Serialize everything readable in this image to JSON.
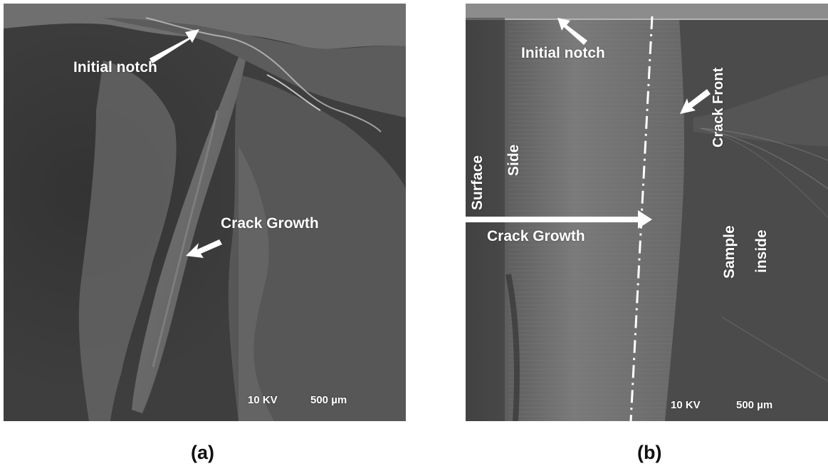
{
  "panel_a": {
    "initial_notch": "Initial notch",
    "crack_growth": "Crack Growth",
    "kv": "10 KV",
    "scale": "500 µm",
    "caption": "(a)"
  },
  "panel_b": {
    "initial_notch": "Initial notch",
    "crack_front": "Crack Front",
    "surface_side_line1": "Surface",
    "surface_side_line2": "Side",
    "crack_growth": "Crack Growth",
    "sample_inside_line1": "Sample",
    "sample_inside_line2": "inside",
    "kv": "10 KV",
    "scale": "500 µm",
    "caption": "(b)"
  },
  "colors": {
    "annotation": "#ffffff",
    "caption": "#111111"
  }
}
